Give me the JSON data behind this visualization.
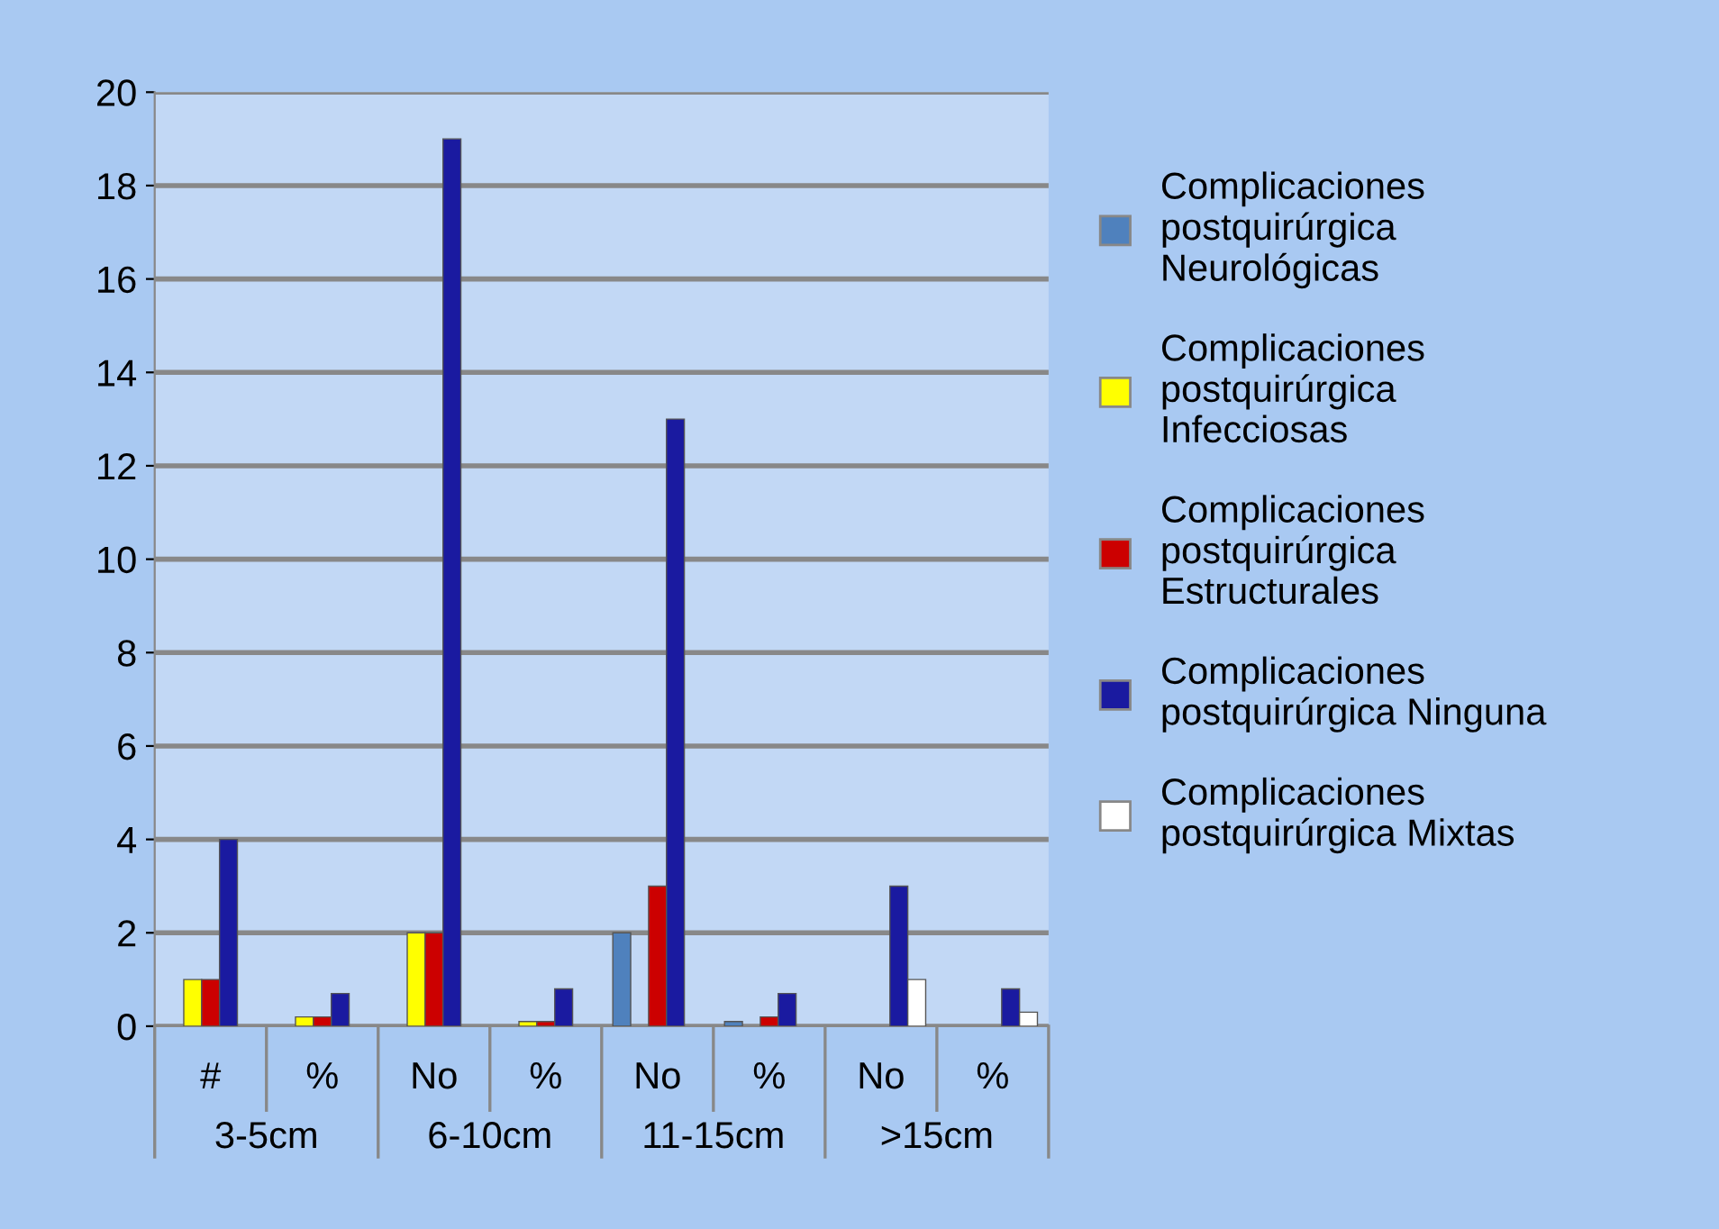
{
  "chart_data": {
    "type": "bar",
    "categories": [
      "#",
      "%",
      "No",
      "%",
      "No",
      "%",
      "No",
      "%"
    ],
    "series": [
      {
        "name": "Complicaciones postquirúrgica Neurológicas",
        "color": "#4f81bd",
        "values": [
          0,
          0,
          0,
          0,
          2,
          0.1,
          0,
          0
        ]
      },
      {
        "name": "Complicaciones postquirúrgica Infecciosas",
        "color": "#ffff00",
        "values": [
          1,
          0.2,
          2,
          0.1,
          0,
          0,
          0,
          0
        ]
      },
      {
        "name": "Complicaciones postquirúrgica Estructurales",
        "color": "#cc0000",
        "values": [
          1,
          0.2,
          2,
          0.1,
          3,
          0.2,
          0,
          0
        ]
      },
      {
        "name": "Complicaciones postquirúrgica Ninguna",
        "color": "#1a1aa0",
        "values": [
          4,
          0.7,
          19,
          0.8,
          13,
          0.7,
          3,
          0.8
        ]
      },
      {
        "name": "Complicaciones postquirúrgica Mixtas",
        "color": "#ffffff",
        "values": [
          0,
          0,
          0,
          0,
          0,
          0,
          1,
          0.3
        ]
      }
    ],
    "annotations": [
      "3-5cm",
      "6-10cm",
      "11-15cm",
      ">15cm"
    ],
    "ylim": [
      0,
      20
    ],
    "yticks": [
      0,
      2,
      4,
      6,
      8,
      10,
      12,
      14,
      16,
      18,
      20
    ],
    "grid": "y",
    "legend": "right"
  }
}
